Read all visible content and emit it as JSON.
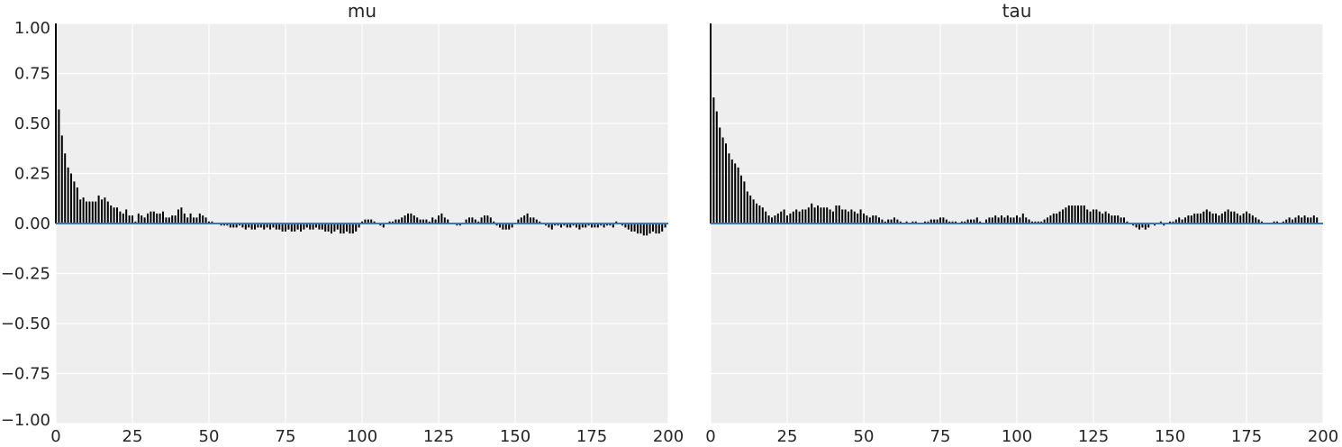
{
  "chart_data": [
    {
      "type": "bar",
      "title": "mu",
      "xlabel": "",
      "ylabel": "",
      "xlim": [
        0,
        200
      ],
      "ylim": [
        -1.0,
        1.0
      ],
      "xticks": [
        "0",
        "25",
        "50",
        "75",
        "100",
        "125",
        "150",
        "175",
        "200"
      ],
      "yticks": [
        "1.00",
        "0.75",
        "0.50",
        "0.25",
        "0.00",
        "−0.25",
        "−0.50",
        "−0.75",
        "−1.00"
      ],
      "grid": true,
      "bar_color": "#000000",
      "line_color": "#3b78b5",
      "lags_start": 0,
      "values": [
        1.0,
        0.57,
        0.44,
        0.35,
        0.28,
        0.25,
        0.21,
        0.18,
        0.12,
        0.13,
        0.11,
        0.11,
        0.11,
        0.11,
        0.14,
        0.12,
        0.13,
        0.11,
        0.09,
        0.08,
        0.08,
        0.06,
        0.05,
        0.07,
        0.04,
        0.04,
        0.01,
        0.05,
        0.04,
        0.03,
        0.05,
        0.06,
        0.06,
        0.05,
        0.05,
        0.06,
        0.03,
        0.03,
        0.04,
        0.04,
        0.07,
        0.08,
        0.05,
        0.03,
        0.05,
        0.03,
        0.03,
        0.05,
        0.04,
        0.03,
        0.01,
        0.01,
        0.0,
        0.0,
        -0.01,
        -0.01,
        -0.01,
        -0.02,
        -0.02,
        -0.02,
        -0.01,
        -0.02,
        -0.03,
        -0.02,
        -0.03,
        -0.03,
        -0.02,
        -0.02,
        -0.03,
        -0.02,
        -0.03,
        -0.02,
        -0.03,
        -0.03,
        -0.04,
        -0.04,
        -0.03,
        -0.04,
        -0.04,
        -0.03,
        -0.04,
        -0.03,
        -0.02,
        -0.03,
        -0.03,
        -0.02,
        -0.03,
        -0.03,
        -0.04,
        -0.04,
        -0.05,
        -0.04,
        -0.03,
        -0.05,
        -0.05,
        -0.04,
        -0.05,
        -0.05,
        -0.04,
        -0.02,
        0.01,
        0.02,
        0.02,
        0.02,
        0.01,
        0.0,
        -0.01,
        -0.02,
        0.0,
        0.01,
        0.01,
        0.02,
        0.02,
        0.03,
        0.04,
        0.05,
        0.05,
        0.04,
        0.03,
        0.02,
        0.02,
        0.02,
        0.01,
        0.03,
        0.02,
        0.04,
        0.05,
        0.03,
        0.02,
        0.0,
        0.0,
        -0.01,
        -0.01,
        0.0,
        0.02,
        0.03,
        0.03,
        0.02,
        0.01,
        0.03,
        0.04,
        0.04,
        0.03,
        0.01,
        -0.01,
        -0.02,
        -0.03,
        -0.03,
        -0.03,
        -0.02,
        0.0,
        0.02,
        0.03,
        0.04,
        0.05,
        0.03,
        0.03,
        0.02,
        0.01,
        0.0,
        -0.01,
        -0.02,
        -0.03,
        -0.01,
        -0.01,
        -0.02,
        -0.01,
        -0.02,
        -0.02,
        -0.01,
        -0.02,
        -0.03,
        -0.02,
        -0.02,
        -0.01,
        -0.02,
        -0.02,
        -0.02,
        -0.01,
        -0.02,
        -0.01,
        -0.01,
        -0.02,
        0.01,
        0.0,
        -0.01,
        -0.02,
        -0.03,
        -0.04,
        -0.04,
        -0.05,
        -0.05,
        -0.06,
        -0.06,
        -0.05,
        -0.04,
        -0.05,
        -0.05,
        -0.04,
        -0.02
      ]
    },
    {
      "type": "bar",
      "title": "tau",
      "xlabel": "",
      "ylabel": "",
      "xlim": [
        0,
        200
      ],
      "ylim": [
        -1.0,
        1.0
      ],
      "xticks": [
        "0",
        "25",
        "50",
        "75",
        "100",
        "125",
        "150",
        "175",
        "200"
      ],
      "yticks": [],
      "grid": true,
      "bar_color": "#000000",
      "line_color": "#3b78b5",
      "lags_start": 0,
      "values": [
        1.0,
        0.63,
        0.56,
        0.48,
        0.43,
        0.4,
        0.35,
        0.32,
        0.3,
        0.28,
        0.24,
        0.21,
        0.16,
        0.14,
        0.12,
        0.1,
        0.09,
        0.08,
        0.06,
        0.04,
        0.03,
        0.04,
        0.05,
        0.06,
        0.07,
        0.04,
        0.05,
        0.06,
        0.07,
        0.06,
        0.07,
        0.07,
        0.08,
        0.1,
        0.08,
        0.09,
        0.08,
        0.08,
        0.08,
        0.07,
        0.06,
        0.09,
        0.09,
        0.07,
        0.07,
        0.06,
        0.07,
        0.06,
        0.05,
        0.07,
        0.05,
        0.04,
        0.03,
        0.04,
        0.04,
        0.03,
        0.02,
        0.01,
        0.02,
        0.02,
        0.03,
        0.02,
        0.01,
        0.0,
        0.01,
        0.0,
        0.01,
        0.01,
        0.0,
        0.0,
        0.01,
        0.01,
        0.02,
        0.02,
        0.02,
        0.03,
        0.03,
        0.02,
        0.01,
        0.01,
        0.01,
        0.0,
        0.01,
        0.01,
        0.02,
        0.02,
        0.02,
        0.03,
        0.01,
        0.0,
        0.02,
        0.03,
        0.03,
        0.04,
        0.03,
        0.04,
        0.03,
        0.04,
        0.03,
        0.03,
        0.04,
        0.03,
        0.05,
        0.03,
        0.02,
        0.01,
        0.01,
        0.01,
        0.01,
        0.02,
        0.03,
        0.04,
        0.05,
        0.05,
        0.06,
        0.07,
        0.08,
        0.09,
        0.09,
        0.09,
        0.09,
        0.09,
        0.09,
        0.07,
        0.06,
        0.07,
        0.07,
        0.06,
        0.05,
        0.06,
        0.05,
        0.04,
        0.04,
        0.04,
        0.03,
        0.03,
        0.01,
        0.0,
        -0.01,
        -0.02,
        -0.03,
        -0.02,
        -0.03,
        -0.02,
        0.0,
        -0.01,
        0.0,
        0.01,
        -0.01,
        0.0,
        0.01,
        0.01,
        0.02,
        0.03,
        0.02,
        0.03,
        0.04,
        0.04,
        0.05,
        0.05,
        0.05,
        0.06,
        0.07,
        0.06,
        0.05,
        0.05,
        0.04,
        0.05,
        0.06,
        0.07,
        0.06,
        0.06,
        0.05,
        0.04,
        0.05,
        0.06,
        0.05,
        0.04,
        0.03,
        0.02,
        0.01,
        0.0,
        0.0,
        0.0,
        0.01,
        0.01,
        0.0,
        0.01,
        0.02,
        0.03,
        0.02,
        0.03,
        0.04,
        0.03,
        0.04,
        0.03,
        0.03,
        0.04,
        0.03
      ]
    }
  ]
}
